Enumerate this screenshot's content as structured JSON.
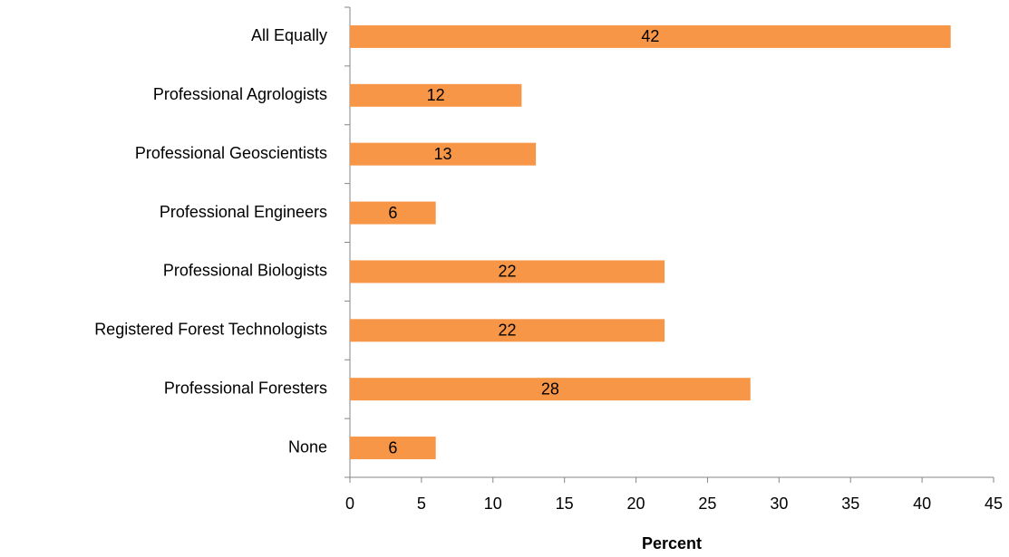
{
  "chart_data": {
    "type": "bar",
    "orientation": "horizontal",
    "categories": [
      "All Equally",
      "Professional Agrologists",
      "Professional Geoscientists",
      "Professional Engineers",
      "Professional Biologists",
      "Registered Forest Technologists",
      "Professional Foresters",
      "None"
    ],
    "values": [
      42,
      12,
      13,
      6,
      22,
      22,
      28,
      6
    ],
    "color": "#f79646",
    "xlabel": "Percent",
    "xlim": [
      0,
      45
    ],
    "xticks": [
      0,
      5,
      10,
      15,
      20,
      25,
      30,
      35,
      40,
      45
    ],
    "grid": false
  }
}
